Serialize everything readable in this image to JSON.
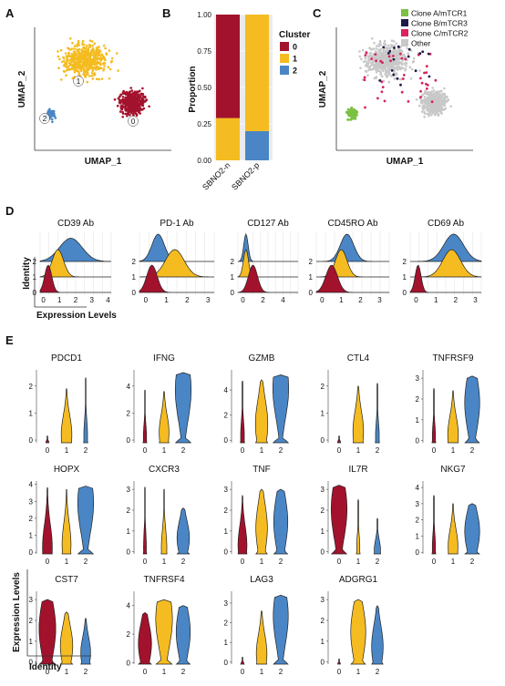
{
  "colors": {
    "c0": "#a3122d",
    "c1": "#f5bc21",
    "c2": "#4a86c6",
    "other": "#c8c8c8",
    "cloneA": "#7bc142",
    "cloneB": "#1d1b47",
    "cloneC": "#d8235c"
  },
  "panels": {
    "A": "A",
    "B": "B",
    "C": "C",
    "D": "D",
    "E": "E"
  },
  "chart_data": [
    {
      "type": "scatter",
      "panel": "A",
      "xlabel": "UMAP_1",
      "ylabel": "UMAP_2",
      "cluster_labels": [
        "0",
        "1",
        "2"
      ],
      "clusters": [
        {
          "name": "0",
          "cx": 0.72,
          "cy": 0.37,
          "rx": 0.17,
          "ry": 0.17
        },
        {
          "name": "1",
          "cx": 0.35,
          "cy": 0.73,
          "rx": 0.26,
          "ry": 0.24
        },
        {
          "name": "2",
          "cx": 0.08,
          "cy": 0.27,
          "rx": 0.06,
          "ry": 0.08
        }
      ]
    },
    {
      "type": "bar",
      "panel": "B",
      "stacked": true,
      "categories": [
        "SBNO2-n",
        "SBNO2-p"
      ],
      "series": [
        {
          "name": "0",
          "values": [
            0.71,
            0.0
          ]
        },
        {
          "name": "1",
          "values": [
            0.29,
            0.8
          ]
        },
        {
          "name": "2",
          "values": [
            0.0,
            0.2
          ]
        }
      ],
      "ylabel": "Proportion",
      "ylim": [
        0,
        1
      ],
      "yticks": [
        "0.00",
        "0.25",
        "0.50",
        "0.75",
        "1.00"
      ],
      "legend_title": "Cluster",
      "legend": [
        "0",
        "1",
        "2"
      ]
    },
    {
      "type": "scatter",
      "panel": "C",
      "xlabel": "UMAP_1",
      "ylabel": "UMAP_2",
      "legend": [
        "Clone A/mTCR1",
        "Clone B/mTCR3",
        "Clone C/mTCR2",
        "Other"
      ]
    },
    {
      "type": "area",
      "panel": "D",
      "subtype": "ridgeline",
      "ylabel": "Identity",
      "xlabel": "Expression Levels",
      "identity_labels": [
        "0",
        "1",
        "2"
      ],
      "markers": [
        {
          "name": "CD39 Ab",
          "xticks": [
            "0",
            "1",
            "2",
            "3",
            "4"
          ],
          "xlim": [
            -0.2,
            4.2
          ],
          "ridges": [
            {
              "mean": 0.3,
              "sd": 0.22
            },
            {
              "mean": 0.9,
              "sd": 0.35
            },
            {
              "mean": 1.7,
              "sd": 0.7
            }
          ]
        },
        {
          "name": "PD-1 Ab",
          "xticks": [
            "0",
            "1",
            "2",
            "3"
          ],
          "xlim": [
            -0.3,
            3.3
          ],
          "ridges": [
            {
              "mean": 0.3,
              "sd": 0.25
            },
            {
              "mean": 1.4,
              "sd": 0.45
            },
            {
              "mean": 0.6,
              "sd": 0.3
            }
          ]
        },
        {
          "name": "CD127 Ab",
          "xticks": [
            "0",
            "2",
            "4"
          ],
          "xlim": [
            -0.5,
            5.5
          ],
          "ridges": [
            {
              "mean": 1.0,
              "sd": 0.45
            },
            {
              "mean": 0.3,
              "sd": 0.25
            },
            {
              "mean": 0.3,
              "sd": 0.22
            }
          ]
        },
        {
          "name": "CD45RO Ab",
          "xticks": [
            "0",
            "1",
            "2",
            "3"
          ],
          "xlim": [
            -0.3,
            3.5
          ],
          "ridges": [
            {
              "mean": 0.5,
              "sd": 0.3
            },
            {
              "mean": 1.0,
              "sd": 0.3
            },
            {
              "mean": 1.3,
              "sd": 0.35
            }
          ]
        },
        {
          "name": "CD69 Ab",
          "xticks": [
            "0",
            "1",
            "2",
            "3"
          ],
          "xlim": [
            -0.3,
            3.3
          ],
          "ridges": [
            {
              "mean": 0.1,
              "sd": 0.15
            },
            {
              "mean": 1.8,
              "sd": 0.45
            },
            {
              "mean": 1.9,
              "sd": 0.5
            }
          ]
        }
      ]
    },
    {
      "type": "area",
      "panel": "E",
      "subtype": "violin",
      "ylabel": "Expression Levels",
      "xlabel": "Identity",
      "categories": [
        "0",
        "1",
        "2"
      ],
      "genes": [
        {
          "name": "PDCD1",
          "yticks": [
            0,
            1,
            2
          ],
          "ylim": [
            -0.1,
            2.6
          ],
          "violins": [
            {
              "max": 0.15,
              "w": 0.1,
              "p": 0.1
            },
            {
              "max": 1.9,
              "w": 0.55,
              "p": 0.15
            },
            {
              "max": 2.3,
              "w": 0.15,
              "p": 0.1
            }
          ]
        },
        {
          "name": "IFNG",
          "yticks": [
            0,
            2,
            4
          ],
          "ylim": [
            -0.2,
            5.2
          ],
          "violins": [
            {
              "max": 3.7,
              "w": 0.12,
              "p": 0.1
            },
            {
              "max": 3.6,
              "w": 0.5,
              "p": 0.2
            },
            {
              "max": 5.0,
              "w": 0.85,
              "p": 0.75
            }
          ]
        },
        {
          "name": "GZMB",
          "yticks": [
            0,
            2,
            4
          ],
          "ylim": [
            -0.2,
            5.6
          ],
          "violins": [
            {
              "max": 4.7,
              "w": 0.15,
              "p": 0.1
            },
            {
              "max": 4.8,
              "w": 0.65,
              "p": 0.3
            },
            {
              "max": 5.2,
              "w": 0.85,
              "p": 0.8
            }
          ]
        },
        {
          "name": "CTL4",
          "yticks": [
            0,
            1,
            2
          ],
          "ylim": [
            -0.1,
            2.6
          ],
          "violins": [
            {
              "max": 0.15,
              "w": 0.1,
              "p": 0.1
            },
            {
              "max": 2.0,
              "w": 0.55,
              "p": 0.2
            },
            {
              "max": 2.1,
              "w": 0.15,
              "p": 0.1
            }
          ]
        },
        {
          "name": "TNFRSF9",
          "yticks": [
            0,
            1,
            2,
            3
          ],
          "ylim": [
            -0.1,
            3.4
          ],
          "violins": [
            {
              "max": 2.5,
              "w": 0.12,
              "p": 0.1
            },
            {
              "max": 2.4,
              "w": 0.55,
              "p": 0.15
            },
            {
              "max": 3.1,
              "w": 0.8,
              "p": 0.6
            }
          ]
        },
        {
          "name": "HOPX",
          "yticks": [
            0,
            1,
            2,
            3,
            4
          ],
          "ylim": [
            -0.1,
            4.2
          ],
          "violins": [
            {
              "max": 3.8,
              "w": 0.5,
              "p": 0.1
            },
            {
              "max": 3.7,
              "w": 0.45,
              "p": 0.15
            },
            {
              "max": 3.9,
              "w": 0.85,
              "p": 0.75
            }
          ]
        },
        {
          "name": "CXCR3",
          "yticks": [
            0,
            1,
            2,
            3
          ],
          "ylim": [
            -0.1,
            3.4
          ],
          "violins": [
            {
              "max": 3.1,
              "w": 0.1,
              "p": 0.1
            },
            {
              "max": 3.0,
              "w": 0.25,
              "p": 0.1
            },
            {
              "max": 2.1,
              "w": 0.65,
              "p": 0.35
            }
          ]
        },
        {
          "name": "TNF",
          "yticks": [
            0,
            1,
            2,
            3
          ],
          "ylim": [
            -0.1,
            3.4
          ],
          "violins": [
            {
              "max": 2.7,
              "w": 0.45,
              "p": 0.15
            },
            {
              "max": 3.0,
              "w": 0.6,
              "p": 0.4
            },
            {
              "max": 3.0,
              "w": 0.75,
              "p": 0.5
            }
          ]
        },
        {
          "name": "IL7R",
          "yticks": [
            0,
            1,
            2,
            3
          ],
          "ylim": [
            -0.1,
            3.4
          ],
          "violins": [
            {
              "max": 3.2,
              "w": 0.85,
              "p": 0.65
            },
            {
              "max": 2.5,
              "w": 0.12,
              "p": 0.1
            },
            {
              "max": 1.6,
              "w": 0.3,
              "p": 0.1
            }
          ]
        },
        {
          "name": "NKG7",
          "yticks": [
            0,
            1,
            2,
            3,
            4
          ],
          "ylim": [
            -0.1,
            4.4
          ],
          "violins": [
            {
              "max": 3.5,
              "w": 0.12,
              "p": 0.1
            },
            {
              "max": 3.0,
              "w": 0.5,
              "p": 0.15
            },
            {
              "max": 3.0,
              "w": 0.8,
              "p": 0.45
            }
          ]
        },
        {
          "name": "CST7",
          "yticks": [
            0,
            1,
            2,
            3
          ],
          "ylim": [
            -0.1,
            3.4
          ],
          "violins": [
            {
              "max": 3.0,
              "w": 0.9,
              "p": 0.55
            },
            {
              "max": 2.4,
              "w": 0.65,
              "p": 0.35
            },
            {
              "max": 2.1,
              "w": 0.5,
              "p": 0.25
            }
          ]
        },
        {
          "name": "TNFRSF4",
          "yticks": [
            0,
            2,
            4
          ],
          "ylim": [
            -0.1,
            5.0
          ],
          "violins": [
            {
              "max": 3.5,
              "w": 0.7,
              "p": 0.4
            },
            {
              "max": 4.4,
              "w": 0.9,
              "p": 0.7
            },
            {
              "max": 4.0,
              "w": 0.75,
              "p": 0.55
            }
          ]
        },
        {
          "name": "LAG3",
          "yticks": [
            0,
            1,
            2,
            3
          ],
          "ylim": [
            -0.1,
            3.6
          ],
          "violins": [
            {
              "max": 0.25,
              "w": 0.1,
              "p": 0.1
            },
            {
              "max": 2.6,
              "w": 0.55,
              "p": 0.2
            },
            {
              "max": 3.4,
              "w": 0.8,
              "p": 0.7
            }
          ]
        },
        {
          "name": "ADGRG1",
          "yticks": [
            0,
            1,
            2,
            3
          ],
          "ylim": [
            -0.1,
            3.4
          ],
          "violins": [
            {
              "max": 0.15,
              "w": 0.08,
              "p": 0.1
            },
            {
              "max": 3.0,
              "w": 0.8,
              "p": 0.5
            },
            {
              "max": 2.7,
              "w": 0.6,
              "p": 0.3
            }
          ]
        }
      ]
    }
  ]
}
